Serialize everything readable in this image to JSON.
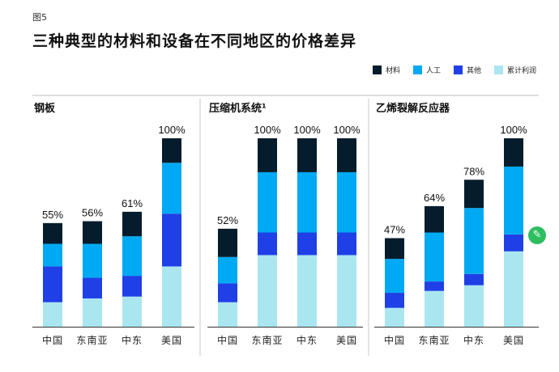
{
  "figure_label": "图5",
  "title": "三种典型的材料和设备在不同地区的价格差异",
  "legend": [
    {
      "label": "材料",
      "color": "#051c2c"
    },
    {
      "label": "人工",
      "color": "#00a9f4"
    },
    {
      "label": "其他",
      "color": "#1f40e6"
    },
    {
      "label": "累计利润",
      "color": "#aae6f0"
    }
  ],
  "chart_data": [
    {
      "type": "bar",
      "stacked": true,
      "title": "钢板",
      "categories": [
        "中国",
        "东南亚",
        "中东",
        "美国"
      ],
      "totals_label": [
        "55%",
        "56%",
        "61%",
        "100%"
      ],
      "totals": [
        55,
        56,
        61,
        100
      ],
      "series": [
        {
          "name": "累计利润",
          "values": [
            13,
            15,
            16,
            32
          ]
        },
        {
          "name": "其他",
          "values": [
            19,
            11,
            11,
            28
          ]
        },
        {
          "name": "人工",
          "values": [
            12,
            18,
            21,
            27
          ]
        },
        {
          "name": "材料",
          "values": [
            11,
            12,
            13,
            13
          ]
        }
      ],
      "ylim": [
        0,
        100
      ]
    },
    {
      "type": "bar",
      "stacked": true,
      "title": "压缩机系统¹",
      "categories": [
        "中国",
        "东南亚",
        "中东",
        "美国"
      ],
      "totals_label": [
        "52%",
        "100%",
        "100%",
        "100%"
      ],
      "totals": [
        52,
        100,
        100,
        100
      ],
      "series": [
        {
          "name": "累计利润",
          "values": [
            13,
            38,
            38,
            38
          ]
        },
        {
          "name": "其他",
          "values": [
            10,
            12,
            12,
            12
          ]
        },
        {
          "name": "人工",
          "values": [
            14,
            32,
            32,
            32
          ]
        },
        {
          "name": "材料",
          "values": [
            15,
            18,
            18,
            18
          ]
        }
      ],
      "ylim": [
        0,
        100
      ]
    },
    {
      "type": "bar",
      "stacked": true,
      "title": "乙烯裂解反应器",
      "categories": [
        "中国",
        "东南亚",
        "中东",
        "美国"
      ],
      "totals_label": [
        "47%",
        "64%",
        "78%",
        "100%"
      ],
      "totals": [
        47,
        64,
        78,
        100
      ],
      "series": [
        {
          "name": "累计利润",
          "values": [
            10,
            19,
            22,
            40
          ]
        },
        {
          "name": "其他",
          "values": [
            8,
            5,
            6,
            9
          ]
        },
        {
          "name": "人工",
          "values": [
            18,
            26,
            35,
            36
          ]
        },
        {
          "name": "材料",
          "values": [
            11,
            14,
            15,
            15
          ]
        }
      ],
      "ylim": [
        0,
        100
      ]
    }
  ],
  "watermark_icon": "evernote-icon",
  "watermark_glyph": "✎"
}
